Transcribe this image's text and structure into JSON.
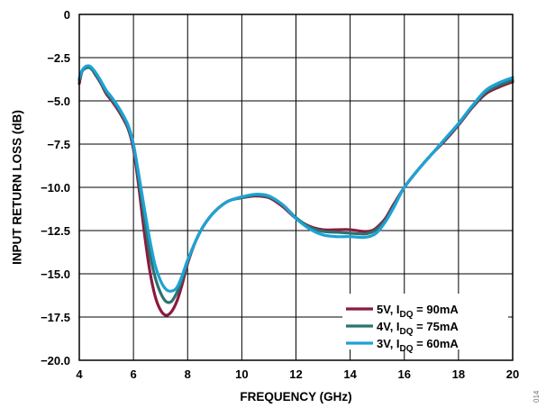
{
  "figure_number": "014",
  "chart_data": {
    "type": "line",
    "title": "",
    "xlabel": "FREQUENCY (GHz)",
    "ylabel": "INPUT RETURN LOSS (dB)",
    "xlim": [
      4,
      20
    ],
    "ylim": [
      -20,
      0
    ],
    "x_ticks": [
      4,
      6,
      8,
      10,
      12,
      14,
      16,
      18,
      20
    ],
    "x_tick_labels": [
      "4",
      "6",
      "8",
      "10",
      "12",
      "14",
      "16",
      "18",
      "20"
    ],
    "y_ticks": [
      0,
      -2.5,
      -5.0,
      -7.5,
      -10.0,
      -12.5,
      -15.0,
      -17.5,
      -20.0
    ],
    "y_tick_labels": [
      "0",
      "−2.5",
      "−5.0",
      "−7.5",
      "−10.0",
      "−12.5",
      "−15.0",
      "−17.5",
      "−20.0"
    ],
    "grid": true,
    "legend_position": "bottom-right",
    "series": [
      {
        "name": "5V, I",
        "sub": "DQ",
        "suffix": " = 90mA",
        "color": "#8B1A3E",
        "x": [
          4.0,
          4.1,
          4.25,
          4.4,
          4.6,
          4.8,
          5.0,
          5.2,
          5.5,
          5.8,
          6.0,
          6.2,
          6.4,
          6.6,
          6.8,
          7.0,
          7.2,
          7.4,
          7.6,
          7.8,
          8.0,
          8.3,
          8.6,
          9.0,
          9.5,
          10.0,
          10.5,
          11.0,
          11.5,
          12.0,
          12.5,
          13.0,
          13.5,
          14.0,
          14.5,
          14.8,
          15.0,
          15.3,
          15.6,
          16.0,
          16.5,
          17.0,
          17.5,
          18.0,
          18.5,
          19.0,
          19.5,
          20.0
        ],
        "y": [
          -4.0,
          -3.3,
          -3.05,
          -3.05,
          -3.5,
          -4.0,
          -4.6,
          -5.0,
          -5.7,
          -6.6,
          -7.8,
          -10.0,
          -12.6,
          -14.8,
          -16.3,
          -17.1,
          -17.4,
          -17.2,
          -16.6,
          -15.6,
          -14.4,
          -13.1,
          -12.2,
          -11.4,
          -10.8,
          -10.6,
          -10.5,
          -10.6,
          -11.1,
          -11.8,
          -12.25,
          -12.45,
          -12.45,
          -12.45,
          -12.55,
          -12.5,
          -12.3,
          -11.8,
          -11.0,
          -10.0,
          -9.0,
          -8.1,
          -7.3,
          -6.4,
          -5.4,
          -4.6,
          -4.2,
          -3.9
        ]
      },
      {
        "name": "4V, I",
        "sub": "DQ",
        "suffix": " = 75mA",
        "color": "#2A7370",
        "x": [
          4.0,
          4.1,
          4.25,
          4.4,
          4.6,
          4.8,
          5.0,
          5.2,
          5.5,
          5.8,
          6.0,
          6.2,
          6.4,
          6.6,
          6.8,
          7.0,
          7.2,
          7.4,
          7.6,
          7.8,
          8.0,
          8.3,
          8.6,
          9.0,
          9.5,
          10.0,
          10.5,
          11.0,
          11.5,
          12.0,
          12.5,
          13.0,
          13.5,
          14.0,
          14.5,
          14.8,
          15.0,
          15.3,
          15.6,
          16.0,
          16.5,
          17.0,
          17.5,
          18.0,
          18.5,
          19.0,
          19.5,
          20.0
        ],
        "y": [
          -3.8,
          -3.3,
          -3.1,
          -3.1,
          -3.45,
          -3.95,
          -4.5,
          -4.9,
          -5.6,
          -6.5,
          -7.6,
          -9.6,
          -11.8,
          -13.8,
          -15.2,
          -16.1,
          -16.6,
          -16.6,
          -16.1,
          -15.3,
          -14.3,
          -13.1,
          -12.2,
          -11.4,
          -10.8,
          -10.6,
          -10.45,
          -10.55,
          -11.0,
          -11.75,
          -12.3,
          -12.55,
          -12.6,
          -12.65,
          -12.7,
          -12.6,
          -12.4,
          -11.9,
          -11.1,
          -10.0,
          -9.0,
          -8.1,
          -7.25,
          -6.35,
          -5.35,
          -4.5,
          -4.1,
          -3.8
        ]
      },
      {
        "name": "3V, I",
        "sub": "DQ",
        "suffix": " = 60mA",
        "color": "#1FA2D4",
        "x": [
          4.0,
          4.1,
          4.25,
          4.4,
          4.6,
          4.8,
          5.0,
          5.2,
          5.5,
          5.8,
          6.0,
          6.2,
          6.4,
          6.6,
          6.8,
          7.0,
          7.2,
          7.4,
          7.6,
          7.8,
          8.0,
          8.3,
          8.6,
          9.0,
          9.5,
          10.0,
          10.5,
          11.0,
          11.5,
          12.0,
          12.5,
          13.0,
          13.5,
          14.0,
          14.5,
          14.8,
          15.0,
          15.3,
          15.6,
          16.0,
          16.5,
          17.0,
          17.5,
          18.0,
          18.5,
          19.0,
          19.5,
          20.0
        ],
        "y": [
          -3.7,
          -3.25,
          -3.0,
          -3.0,
          -3.35,
          -3.85,
          -4.4,
          -4.8,
          -5.5,
          -6.4,
          -7.5,
          -9.3,
          -11.2,
          -13.0,
          -14.5,
          -15.4,
          -15.9,
          -16.0,
          -15.8,
          -15.1,
          -14.2,
          -13.1,
          -12.2,
          -11.4,
          -10.8,
          -10.55,
          -10.4,
          -10.5,
          -11.0,
          -11.8,
          -12.4,
          -12.75,
          -12.85,
          -12.85,
          -12.9,
          -12.8,
          -12.6,
          -12.0,
          -11.2,
          -10.0,
          -9.0,
          -8.1,
          -7.2,
          -6.3,
          -5.3,
          -4.4,
          -3.95,
          -3.65
        ]
      }
    ]
  }
}
